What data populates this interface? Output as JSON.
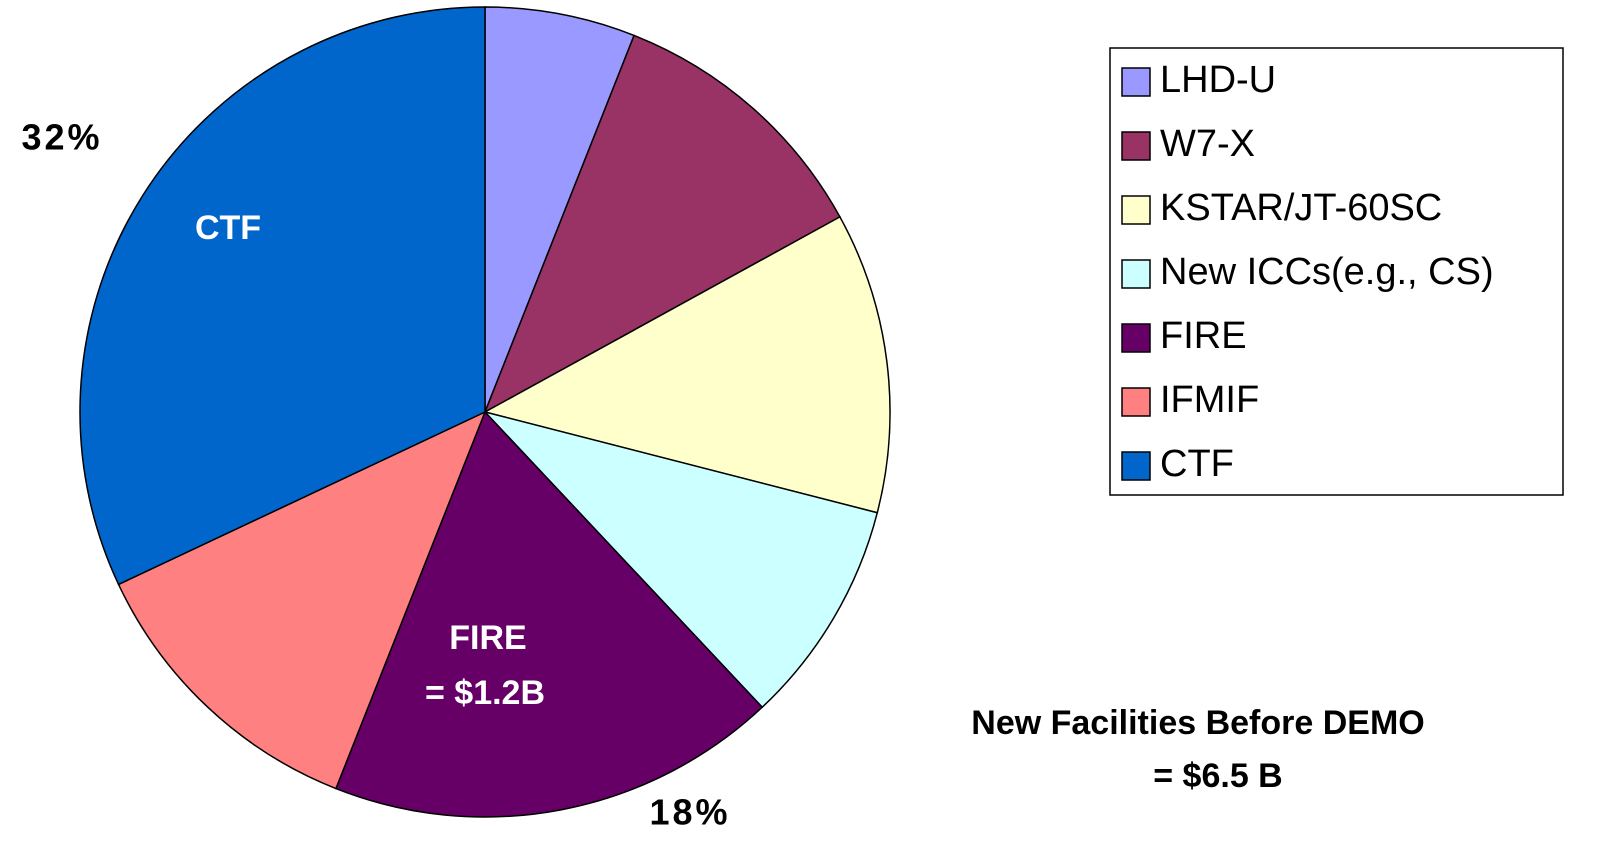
{
  "chart_data": {
    "type": "pie",
    "categories": [
      "LHD-U",
      "W7-X",
      "KSTAR/JT-60SC",
      "New ICCs(e.g., CS)",
      "FIRE",
      "IFMIF",
      "CTF"
    ],
    "values": [
      6,
      11,
      12,
      9,
      18,
      12,
      32
    ],
    "value_labels": [
      null,
      null,
      null,
      null,
      "18%",
      null,
      "32%"
    ],
    "colors": [
      "#9999ff",
      "#993366",
      "#ffffcc",
      "#ccffff",
      "#660066",
      "#ff8080",
      "#0066cc"
    ],
    "annotations": [
      "CTF",
      "FIRE",
      "= $1.2B",
      "New Facilities Before DEMO",
      "= $6.5 B"
    ],
    "legend": "right"
  }
}
